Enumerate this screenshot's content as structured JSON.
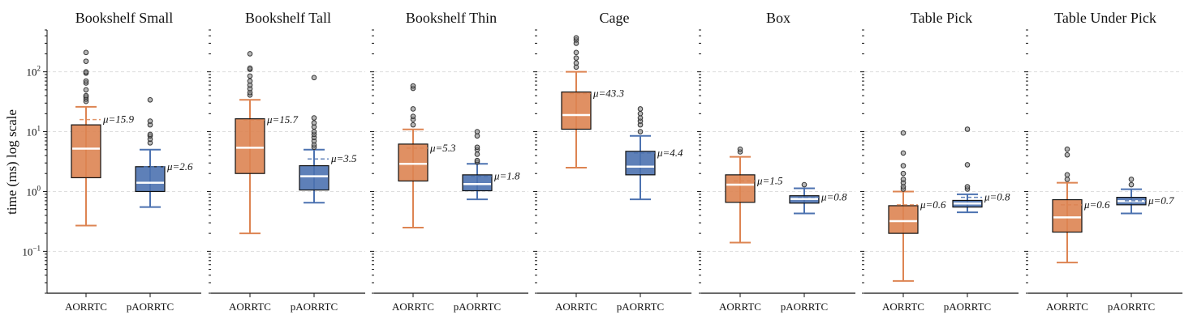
{
  "chart_data": {
    "type": "box",
    "ylabel": "time (ms) log scale",
    "yscale": "log",
    "ylim": [
      0.02,
      500
    ],
    "yticks": [
      {
        "value": 0.1,
        "label": "10",
        "exp": "−1"
      },
      {
        "value": 1,
        "label": "10",
        "exp": "0"
      },
      {
        "value": 10,
        "label": "10",
        "exp": "1"
      },
      {
        "value": 100,
        "label": "10",
        "exp": "2"
      }
    ],
    "grid": "horizontal dashed at decades",
    "categories": [
      "AORRTC",
      "pAORRTC"
    ],
    "colors": {
      "AORRTC": "#DD8452",
      "pAORRTC": "#4C72B0",
      "outlier": "#555555"
    },
    "panels": [
      {
        "title": "Bookshelf Small",
        "boxes": [
          {
            "label": "AORRTC",
            "whislo": 0.27,
            "q1": 1.7,
            "median": 5.2,
            "q3": 13,
            "whishi": 26,
            "mean": 15.9,
            "mean_label": "μ=15.9",
            "fliers": [
              32,
              35,
              38,
              40,
              50,
              65,
              70,
              95,
              100,
              150,
              210
            ]
          },
          {
            "label": "pAORRTC",
            "whislo": 0.55,
            "q1": 1.0,
            "median": 1.4,
            "q3": 2.6,
            "whishi": 5.0,
            "mean": 2.6,
            "mean_label": "μ=2.6",
            "fliers": [
              6.5,
              7.5,
              8.5,
              9,
              13,
              15,
              34
            ]
          }
        ]
      },
      {
        "title": "Bookshelf Tall",
        "boxes": [
          {
            "label": "AORRTC",
            "whislo": 0.2,
            "q1": 2.0,
            "median": 5.4,
            "q3": 16.4,
            "whishi": 34,
            "mean": 15.7,
            "mean_label": "μ=15.7",
            "fliers": [
              41,
              45,
              52,
              60,
              70,
              85,
              110,
              115,
              200
            ]
          },
          {
            "label": "pAORRTC",
            "whislo": 0.65,
            "q1": 1.06,
            "median": 1.8,
            "q3": 2.7,
            "whishi": 5.0,
            "mean": 3.5,
            "mean_label": "μ=3.5",
            "fliers": [
              5.5,
              6,
              7,
              8,
              9,
              10,
              12,
              14,
              17,
              80
            ]
          }
        ]
      },
      {
        "title": "Bookshelf Thin",
        "boxes": [
          {
            "label": "AORRTC",
            "whislo": 0.25,
            "q1": 1.5,
            "median": 2.9,
            "q3": 6.2,
            "whishi": 10.9,
            "mean": 5.3,
            "mean_label": "μ=5.3",
            "fliers": [
              13,
              16,
              18,
              24,
              53,
              58
            ]
          },
          {
            "label": "pAORRTC",
            "whislo": 0.74,
            "q1": 1.03,
            "median": 1.33,
            "q3": 1.9,
            "whishi": 2.9,
            "mean": 1.8,
            "mean_label": "μ=1.8",
            "fliers": [
              3.1,
              3.3,
              4.2,
              5,
              5.5,
              8.5,
              10
            ]
          }
        ]
      },
      {
        "title": "Cage",
        "boxes": [
          {
            "label": "AORRTC",
            "whislo": 2.5,
            "q1": 11,
            "median": 19,
            "q3": 46,
            "whishi": 100,
            "mean": 43.3,
            "mean_label": "μ=43.3",
            "fliers": [
              120,
              140,
              170,
              210,
              300,
              340,
              370
            ]
          },
          {
            "label": "pAORRTC",
            "whislo": 0.74,
            "q1": 1.9,
            "median": 2.6,
            "q3": 4.7,
            "whishi": 8.5,
            "mean": 4.4,
            "mean_label": "μ=4.4",
            "fliers": [
              10,
              13,
              15,
              17,
              20,
              24
            ]
          }
        ]
      },
      {
        "title": "Box",
        "boxes": [
          {
            "label": "AORRTC",
            "whislo": 0.14,
            "q1": 0.66,
            "median": 1.3,
            "q3": 1.9,
            "whishi": 3.8,
            "mean": 1.5,
            "mean_label": "μ=1.5",
            "fliers": [
              4.6,
              5.1
            ]
          },
          {
            "label": "pAORRTC",
            "whislo": 0.43,
            "q1": 0.64,
            "median": 0.75,
            "q3": 0.85,
            "whishi": 1.13,
            "mean": 0.8,
            "mean_label": "μ=0.8",
            "fliers": [
              1.3
            ]
          }
        ]
      },
      {
        "title": "Table Pick",
        "boxes": [
          {
            "label": "AORRTC",
            "whislo": 0.032,
            "q1": 0.2,
            "median": 0.32,
            "q3": 0.58,
            "whishi": 1.0,
            "mean": 0.6,
            "mean_label": "μ=0.6",
            "fliers": [
              1.1,
              1.2,
              1.4,
              1.6,
              2.0,
              2.7,
              4.4,
              9.5
            ]
          },
          {
            "label": "pAORRTC",
            "whislo": 0.45,
            "q1": 0.55,
            "median": 0.63,
            "q3": 0.71,
            "whishi": 0.9,
            "mean": 0.8,
            "mean_label": "μ=0.8",
            "fliers": [
              1.1,
              1.2,
              2.8,
              11
            ]
          }
        ]
      },
      {
        "title": "Table Under Pick",
        "boxes": [
          {
            "label": "AORRTC",
            "whislo": 0.065,
            "q1": 0.21,
            "median": 0.37,
            "q3": 0.73,
            "whishi": 1.4,
            "mean": 0.6,
            "mean_label": "μ=0.6",
            "fliers": [
              1.6,
              1.9,
              4.1,
              5.1
            ]
          },
          {
            "label": "pAORRTC",
            "whislo": 0.43,
            "q1": 0.6,
            "median": 0.69,
            "q3": 0.8,
            "whishi": 1.09,
            "mean": 0.7,
            "mean_label": "μ=0.7",
            "fliers": [
              1.3,
              1.6
            ]
          }
        ]
      }
    ]
  }
}
